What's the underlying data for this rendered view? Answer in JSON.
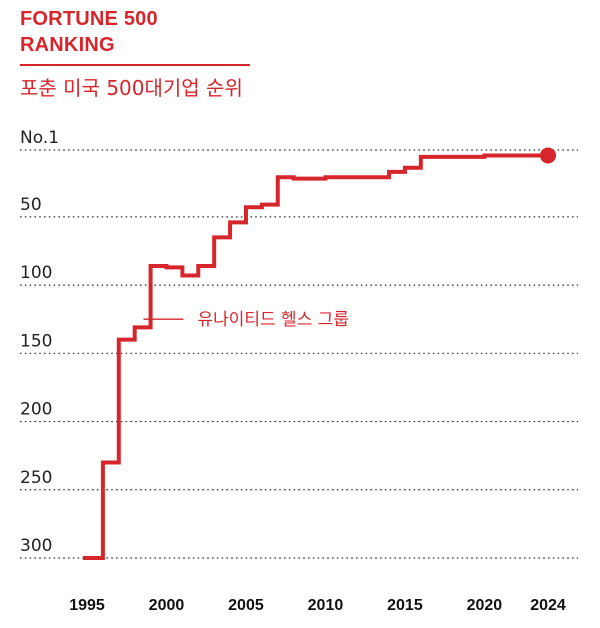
{
  "header": {
    "kicker": "FORTUNE 500 RANKING",
    "subtitle": "포춘 미국 500대기업 순위"
  },
  "colors": {
    "accent": "#d7262b",
    "grid": "#333333",
    "text": "#222222"
  },
  "chart_data": {
    "type": "line",
    "step": true,
    "grid": true,
    "ylim": [
      1,
      300
    ],
    "y_inverted": true,
    "y_ticks": [
      {
        "value": 1,
        "label": "No.1"
      },
      {
        "value": 50,
        "label": "50"
      },
      {
        "value": 100,
        "label": "100"
      },
      {
        "value": 150,
        "label": "150"
      },
      {
        "value": 200,
        "label": "200"
      },
      {
        "value": 250,
        "label": "250"
      },
      {
        "value": 300,
        "label": "300"
      }
    ],
    "x_ticks": [
      {
        "value": 1995,
        "label": "1995"
      },
      {
        "value": 2000,
        "label": "2000"
      },
      {
        "value": 2005,
        "label": "2005"
      },
      {
        "value": 2010,
        "label": "2010"
      },
      {
        "value": 2015,
        "label": "2015"
      },
      {
        "value": 2020,
        "label": "2020"
      },
      {
        "value": 2024,
        "label": "2024"
      }
    ],
    "xlim": [
      1994,
      2025
    ],
    "series": [
      {
        "name": "유나이티드 헬스 그룹",
        "x": [
          1995,
          1996,
          1997,
          1998,
          1999,
          2000,
          2001,
          2002,
          2003,
          2004,
          2005,
          2006,
          2007,
          2008,
          2009,
          2010,
          2011,
          2012,
          2013,
          2014,
          2015,
          2016,
          2017,
          2018,
          2019,
          2020,
          2021,
          2022,
          2023,
          2024
        ],
        "y": [
          300,
          230,
          140,
          131,
          86,
          87,
          93,
          86,
          65,
          54,
          43,
          41,
          21,
          22,
          22,
          21,
          21,
          21,
          21,
          17,
          14,
          6,
          6,
          6,
          6,
          5,
          5,
          5,
          5,
          5
        ]
      }
    ],
    "annotations": [
      {
        "text": "유나이티드 헬스 그룹",
        "x": 1998.3,
        "y": 125
      }
    ],
    "end_marker": {
      "x": 2024,
      "y": 5
    }
  }
}
